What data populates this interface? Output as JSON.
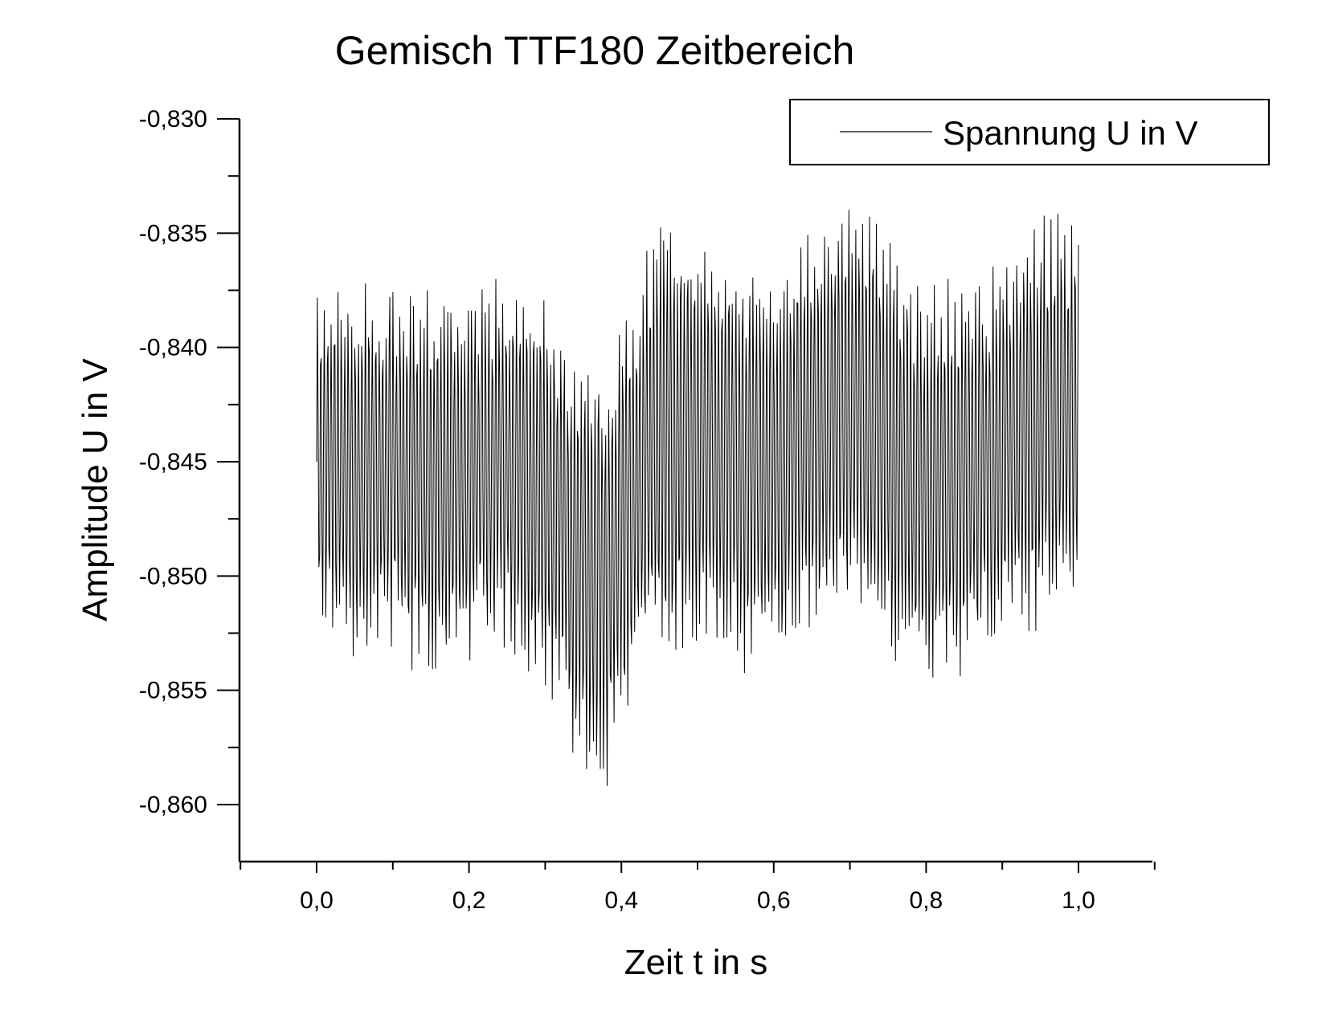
{
  "chart_data": {
    "type": "line",
    "title": "Gemisch TTF180 Zeitbereich",
    "xlabel": "Zeit t in s",
    "ylabel": "Amplitude U in V",
    "xlim": [
      -0.1,
      1.1
    ],
    "ylim": [
      -0.8625,
      -0.83
    ],
    "x_ticks": [
      0.0,
      0.2,
      0.4,
      0.6,
      0.8,
      1.0
    ],
    "x_tick_labels": [
      "0,0",
      "0,2",
      "0,4",
      "0,6",
      "0,8",
      "1,0"
    ],
    "y_ticks": [
      -0.83,
      -0.835,
      -0.84,
      -0.845,
      -0.85,
      -0.855,
      -0.86
    ],
    "y_tick_labels": [
      "-0,830",
      "-0,835",
      "-0,840",
      "-0,845",
      "-0,850",
      "-0,855",
      "-0,860"
    ],
    "grid": false,
    "legend": {
      "position": "top-right",
      "entries": [
        "Spannung U in V"
      ]
    },
    "series": [
      {
        "name": "Spannung U in V",
        "color": "#000000",
        "sample_count": 1000,
        "oscillation_period": 0.0045,
        "envelope": {
          "x": [
            0.0,
            0.05,
            0.1,
            0.15,
            0.2,
            0.25,
            0.3,
            0.35,
            0.38,
            0.4,
            0.45,
            0.5,
            0.55,
            0.6,
            0.65,
            0.7,
            0.75,
            0.8,
            0.85,
            0.9,
            0.95,
            1.0
          ],
          "center": [
            -0.845,
            -0.8455,
            -0.845,
            -0.846,
            -0.8455,
            -0.845,
            -0.8465,
            -0.8495,
            -0.85,
            -0.8475,
            -0.844,
            -0.844,
            -0.845,
            -0.8455,
            -0.8435,
            -0.8425,
            -0.8445,
            -0.8465,
            -0.8455,
            -0.8445,
            -0.843,
            -0.843
          ],
          "amplitude": [
            0.0075,
            0.0085,
            0.0085,
            0.009,
            0.0085,
            0.0085,
            0.009,
            0.0095,
            0.01,
            0.0095,
            0.01,
            0.01,
            0.0095,
            0.009,
            0.0095,
            0.01,
            0.0095,
            0.0095,
            0.009,
            0.009,
            0.0095,
            0.0085
          ]
        }
      }
    ]
  }
}
